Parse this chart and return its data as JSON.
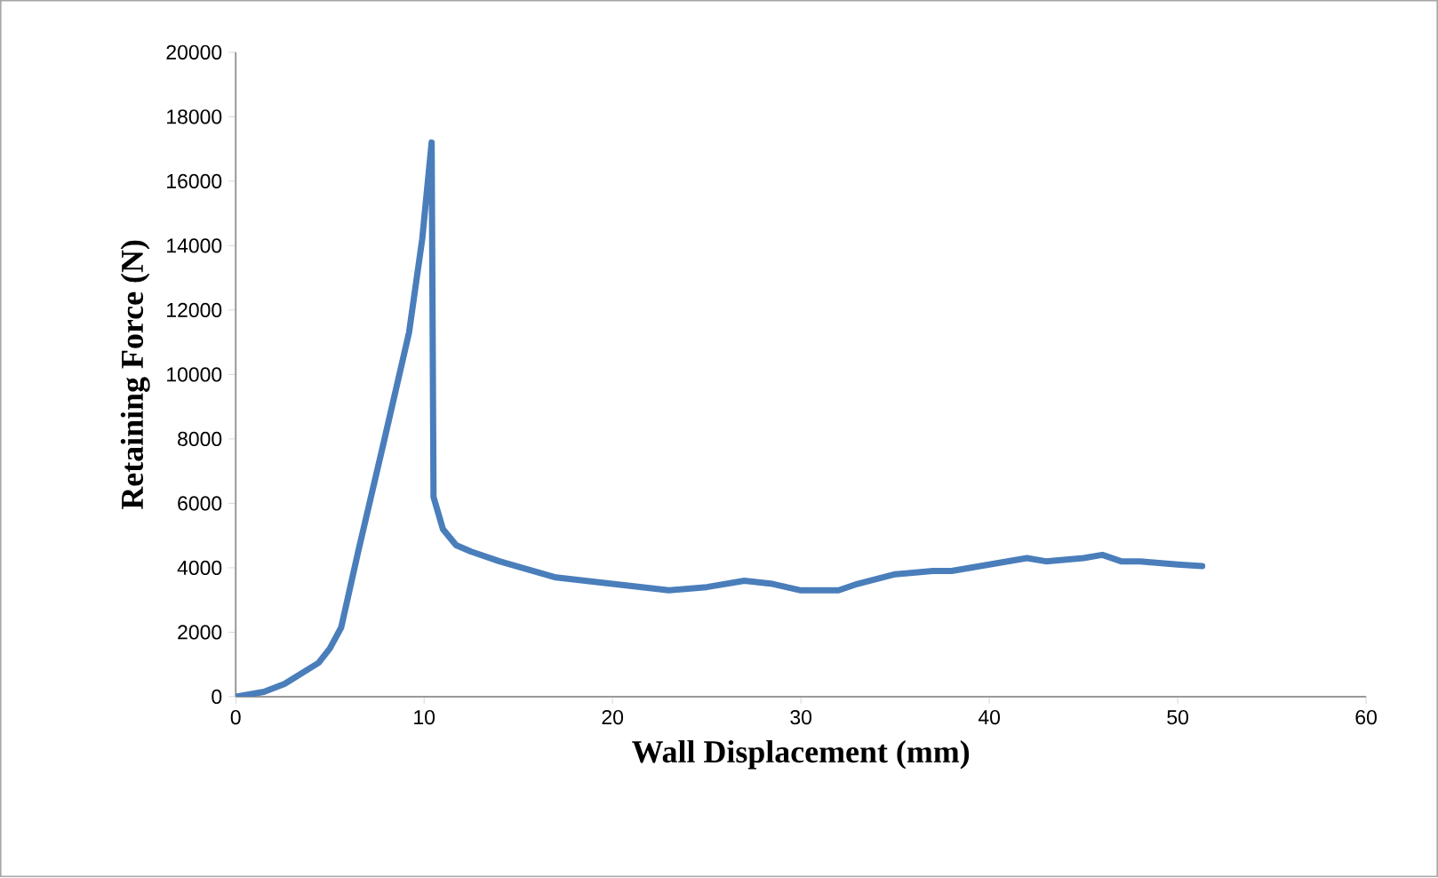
{
  "chart_data": {
    "type": "line",
    "xlabel": "Wall Displacement (mm)",
    "ylabel": "Retaining Force (N)",
    "color": "#4a7ebb",
    "xlim": [
      0,
      60
    ],
    "ylim": [
      0,
      20000
    ],
    "xticks": [
      0,
      10,
      20,
      30,
      40,
      50,
      60
    ],
    "yticks": [
      0,
      2000,
      4000,
      6000,
      8000,
      10000,
      12000,
      14000,
      16000,
      18000,
      20000
    ],
    "grid": false,
    "marker": "none",
    "line_style": "solid",
    "x": [
      0,
      1.5,
      2.6,
      4.4,
      5,
      5.6,
      6.5,
      7.9,
      9.2,
      9.9,
      10.4,
      10.5,
      11,
      11.7,
      12.5,
      14,
      17,
      20,
      23,
      25,
      27,
      28.5,
      30,
      32,
      33,
      35,
      37,
      38,
      40,
      42,
      43,
      45,
      46,
      47,
      48,
      50,
      51.3
    ],
    "values": [
      0,
      150,
      400,
      1050,
      1500,
      2150,
      4500,
      8000,
      11300,
      14200,
      17200,
      6200,
      5200,
      4700,
      4500,
      4200,
      3700,
      3500,
      3300,
      3400,
      3600,
      3500,
      3300,
      3300,
      3500,
      3800,
      3900,
      3900,
      4100,
      4300,
      4200,
      4300,
      4400,
      4200,
      4200,
      4100,
      4050
    ]
  }
}
